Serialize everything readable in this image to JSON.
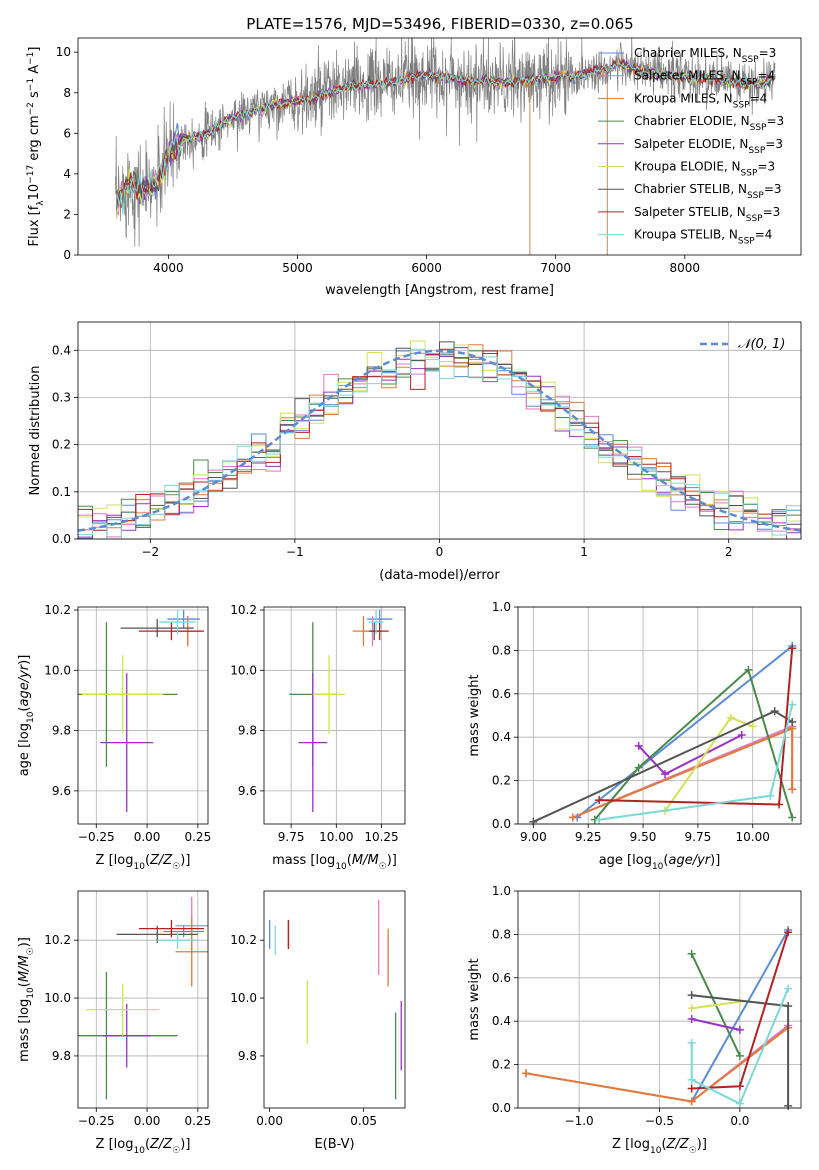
{
  "figure": {
    "title": "PLATE=1576, MJD=53496, FIBERID=0330, z=0.065"
  },
  "series_styles": {
    "colors": [
      "#7f7f7f",
      "#e377c2",
      "#ff7f0e",
      "#2ca02c",
      "#9467bd",
      "#bcbd22",
      "#000000",
      "#d62728",
      "#17becf"
    ],
    "names": [
      "Chabrier MILES, N$_{SSP}$=3",
      "Salpeter MILES, N$_{SSP}$=4",
      "Kroupa MILES, N$_{SSP}$=4",
      "Chabrier ELODIE, N$_{SSP}$=3",
      "Salpeter ELODIE, N$_{SSP}$=3",
      "Kroupa ELODIE, N$_{SSP}$=3",
      "Chabrier STELIB, N$_{SSP}$=3",
      "Salpeter STELIB, N$_{SSP}$=3",
      "Kroupa STELIB, N$_{SSP}$=4"
    ]
  },
  "chart_data": [
    {
      "id": "spectrum",
      "type": "line",
      "xlabel": "wavelength [Angstrom, rest frame]",
      "ylabel": "Flux [f_λ 10^-17 erg cm^-2 s^-1 A^-1]",
      "xlim": [
        3300,
        8900
      ],
      "ylim": [
        0,
        10.7
      ],
      "xticks": [
        4000,
        5000,
        6000,
        7000,
        8000
      ],
      "yticks": [
        0,
        2,
        4,
        6,
        8,
        10
      ],
      "grid": false,
      "legend_position": "right",
      "legend": [
        {
          "label": "Chabrier MILES, N",
          "sub": "SSP",
          "rest": "=3",
          "color": "#5b8bd6"
        },
        {
          "label": "Salpeter MILES, N",
          "sub": "SSP",
          "rest": "=4",
          "color": "#e377c2"
        },
        {
          "label": "Kroupa MILES, N",
          "sub": "SSP",
          "rest": "=4",
          "color": "#e07b39"
        },
        {
          "label": "Chabrier ELODIE, N",
          "sub": "SSP",
          "rest": "=3",
          "color": "#4a8a4a"
        },
        {
          "label": "Salpeter ELODIE, N",
          "sub": "SSP",
          "rest": "=3",
          "color": "#9b30c8"
        },
        {
          "label": "Kroupa ELODIE, N",
          "sub": "SSP",
          "rest": "=3",
          "color": "#d4e157"
        },
        {
          "label": "Chabrier STELIB, N",
          "sub": "SSP",
          "rest": "=3",
          "color": "#555555"
        },
        {
          "label": "Salpeter STELIB, N",
          "sub": "SSP",
          "rest": "=3",
          "color": "#b22222"
        },
        {
          "label": "Kroupa STELIB, N",
          "sub": "SSP",
          "rest": "=4",
          "color": "#7dd8d8"
        }
      ],
      "continuum": {
        "x": [
          3600,
          3700,
          3800,
          3900,
          4000,
          4100,
          4300,
          4500,
          4800,
          5100,
          5400,
          5700,
          6000,
          6300,
          6600,
          6900,
          7200,
          7500,
          7700,
          8000,
          8300,
          8600,
          8700
        ],
        "y": [
          2.6,
          3.6,
          3.2,
          3.4,
          4.9,
          5.7,
          6.0,
          6.8,
          7.4,
          7.7,
          8.3,
          8.5,
          8.9,
          8.6,
          8.5,
          8.7,
          8.9,
          9.4,
          9.0,
          8.8,
          8.6,
          8.4,
          8.8
        ]
      },
      "noise_amplitude": 1.2,
      "sky_spikes_x": [
        6800,
        7400
      ]
    },
    {
      "id": "residuals",
      "type": "histogram",
      "xlabel": "(data-model)/error",
      "ylabel": "Normed distribution",
      "xlim": [
        -2.5,
        2.5
      ],
      "ylim": [
        0,
        0.46
      ],
      "xticks": [
        -2,
        -1,
        0,
        1,
        2
      ],
      "yticks": [
        0.0,
        0.1,
        0.2,
        0.3,
        0.4
      ],
      "grid": true,
      "legend_position": "top-right",
      "gaussian_label": "𝒩(0, 1)",
      "gaussian_color": "#5b8bd6",
      "bin_width": 0.1
    },
    {
      "id": "age_vs_Z",
      "type": "errorbar",
      "xlabel": "Z [log10(Z/Z☉)]",
      "ylabel": "age [log10(age/yr)]",
      "xlim": [
        -0.34,
        0.3
      ],
      "ylim": [
        9.49,
        10.21
      ],
      "xticks": [
        -0.25,
        0.0,
        0.25
      ],
      "xtick_labels": [
        "−0.25",
        "0.00",
        "0.25"
      ],
      "yticks": [
        9.6,
        9.8,
        10.0,
        10.2
      ],
      "grid": true,
      "points": [
        {
          "color": "#5b8bd6",
          "x": 0.18,
          "xerr": 0.08,
          "y": 10.17,
          "yerr": 0.03
        },
        {
          "color": "#e377c2",
          "x": 0.2,
          "xerr": 0.06,
          "y": 10.13,
          "yerr": 0.05
        },
        {
          "color": "#e07b39",
          "x": 0.2,
          "xerr": 0.07,
          "y": 10.13,
          "yerr": 0.05
        },
        {
          "color": "#4a8a4a",
          "x": -0.2,
          "xerr": 0.35,
          "y": 9.92,
          "yerr": 0.24
        },
        {
          "color": "#9b30c8",
          "x": -0.1,
          "xerr": 0.13,
          "y": 9.76,
          "yerr": 0.23
        },
        {
          "color": "#d4e157",
          "x": -0.12,
          "xerr": 0.2,
          "y": 9.92,
          "yerr": 0.13
        },
        {
          "color": "#555555",
          "x": 0.05,
          "xerr": 0.18,
          "y": 10.14,
          "yerr": 0.03
        },
        {
          "color": "#b22222",
          "x": 0.12,
          "xerr": 0.16,
          "y": 10.13,
          "yerr": 0.03
        },
        {
          "color": "#7dd8d8",
          "x": 0.15,
          "xerr": 0.09,
          "y": 10.16,
          "yerr": 0.04
        }
      ]
    },
    {
      "id": "age_vs_mass",
      "type": "errorbar",
      "xlabel": "mass [log10(M/M☉)]",
      "ylabel": "",
      "xlim": [
        9.6,
        10.38
      ],
      "ylim": [
        9.49,
        10.21
      ],
      "xticks": [
        9.75,
        10.0,
        10.25
      ],
      "xtick_labels": [
        "9.75",
        "10.00",
        "10.25"
      ],
      "yticks": [
        9.6,
        9.8,
        10.0,
        10.2
      ],
      "grid": true,
      "points": [
        {
          "color": "#5b8bd6",
          "x": 10.24,
          "xerr": 0.07,
          "y": 10.17,
          "yerr": 0.03
        },
        {
          "color": "#e377c2",
          "x": 10.2,
          "xerr": 0.05,
          "y": 10.13,
          "yerr": 0.05
        },
        {
          "color": "#e07b39",
          "x": 10.15,
          "xerr": 0.06,
          "y": 10.13,
          "yerr": 0.05
        },
        {
          "color": "#4a8a4a",
          "x": 9.87,
          "xerr": 0.13,
          "y": 9.92,
          "yerr": 0.24
        },
        {
          "color": "#9b30c8",
          "x": 9.87,
          "xerr": 0.08,
          "y": 9.76,
          "yerr": 0.23
        },
        {
          "color": "#d4e157",
          "x": 9.96,
          "xerr": 0.09,
          "y": 9.92,
          "yerr": 0.13
        },
        {
          "color": "#555555",
          "x": 10.21,
          "xerr": 0.03,
          "y": 10.13,
          "yerr": 0.03
        },
        {
          "color": "#b22222",
          "x": 10.24,
          "xerr": 0.05,
          "y": 10.13,
          "yerr": 0.03
        },
        {
          "color": "#7dd8d8",
          "x": 10.22,
          "xerr": 0.04,
          "y": 10.16,
          "yerr": 0.04
        }
      ]
    },
    {
      "id": "weight_vs_age",
      "type": "line",
      "xlabel": "age [log10(age/yr)]",
      "ylabel": "mass weight",
      "xlim": [
        8.93,
        10.22
      ],
      "ylim": [
        0,
        1
      ],
      "xticks": [
        9.0,
        9.25,
        9.5,
        9.75,
        10.0
      ],
      "xtick_labels": [
        "9.00",
        "9.25",
        "9.50",
        "9.75",
        "10.00"
      ],
      "yticks": [
        0.0,
        0.2,
        0.4,
        0.6,
        0.8,
        1.0
      ],
      "grid": true,
      "series": [
        {
          "color": "#5b8bd6",
          "x": [
            9.2,
            10.18
          ],
          "y": [
            0.03,
            0.82
          ]
        },
        {
          "color": "#e377c2",
          "x": [
            9.18,
            10.18,
            10.18
          ],
          "y": [
            0.03,
            0.45,
            0.16
          ]
        },
        {
          "color": "#e07b39",
          "x": [
            9.18,
            10.18,
            10.18
          ],
          "y": [
            0.03,
            0.44,
            0.16
          ]
        },
        {
          "color": "#4a8a4a",
          "x": [
            9.28,
            9.48,
            9.98,
            10.18
          ],
          "y": [
            0.02,
            0.26,
            0.71,
            0.03
          ]
        },
        {
          "color": "#9b30c8",
          "x": [
            9.48,
            9.6,
            9.95
          ],
          "y": [
            0.36,
            0.23,
            0.41
          ]
        },
        {
          "color": "#d4e157",
          "x": [
            9.6,
            9.9,
            10.0
          ],
          "y": [
            0.06,
            0.49,
            0.45
          ]
        },
        {
          "color": "#555555",
          "x": [
            9.0,
            10.1,
            10.18
          ],
          "y": [
            0.01,
            0.52,
            0.47
          ]
        },
        {
          "color": "#b22222",
          "x": [
            9.3,
            10.12,
            10.18
          ],
          "y": [
            0.11,
            0.09,
            0.81
          ]
        },
        {
          "color": "#7dd8d8",
          "x": [
            9.3,
            10.08,
            10.18
          ],
          "y": [
            0.02,
            0.13,
            0.55
          ]
        }
      ]
    },
    {
      "id": "mass_vs_Z",
      "type": "errorbar",
      "xlabel": "Z [log10(Z/Z☉)]",
      "ylabel": "mass [log10(M/M☉)]",
      "xlim": [
        -0.34,
        0.3
      ],
      "ylim": [
        9.62,
        10.37
      ],
      "xticks": [
        -0.25,
        0.0,
        0.25
      ],
      "xtick_labels": [
        "−0.25",
        "0.00",
        "0.25"
      ],
      "yticks": [
        9.8,
        10.0,
        10.2
      ],
      "grid": true,
      "points": [
        {
          "color": "#5b8bd6",
          "x": 0.18,
          "xerr": 0.1,
          "y": 10.23,
          "yerr": 0.02
        },
        {
          "color": "#e377c2",
          "x": 0.22,
          "xerr": 0.08,
          "y": 10.25,
          "yerr": 0.1
        },
        {
          "color": "#e07b39",
          "x": 0.22,
          "xerr": 0.08,
          "y": 10.16,
          "yerr": 0.12
        },
        {
          "color": "#4a8a4a",
          "x": -0.2,
          "xerr": 0.35,
          "y": 9.87,
          "yerr": 0.22
        },
        {
          "color": "#9b30c8",
          "x": -0.1,
          "xerr": 0.12,
          "y": 9.87,
          "yerr": 0.11
        },
        {
          "color": "#d4e157",
          "x": -0.12,
          "xerr": 0.18,
          "y": 9.96,
          "yerr": 0.09
        },
        {
          "color": "#555555",
          "x": 0.05,
          "xerr": 0.2,
          "y": 10.22,
          "yerr": 0.03
        },
        {
          "color": "#b22222",
          "x": 0.12,
          "xerr": 0.16,
          "y": 10.24,
          "yerr": 0.03
        },
        {
          "color": "#7dd8d8",
          "x": 0.15,
          "xerr": 0.1,
          "y": 10.2,
          "yerr": 0.03
        }
      ]
    },
    {
      "id": "mass_vs_EBV",
      "type": "errorbar",
      "xlabel": "E(B-V)",
      "ylabel": "",
      "xlim": [
        -0.003,
        0.072
      ],
      "ylim": [
        9.62,
        10.37
      ],
      "xticks": [
        0.0,
        0.05
      ],
      "xtick_labels": [
        "0.00",
        "0.05"
      ],
      "yticks": [
        9.8,
        10.0,
        10.2
      ],
      "grid": false,
      "points": [
        {
          "color": "#5b8bd6",
          "x": 0.0,
          "xerr": 0,
          "y": 10.22,
          "yerr": 0.05
        },
        {
          "color": "#e377c2",
          "x": 0.058,
          "xerr": 0,
          "y": 10.21,
          "yerr": 0.13
        },
        {
          "color": "#e07b39",
          "x": 0.063,
          "xerr": 0,
          "y": 10.14,
          "yerr": 0.1
        },
        {
          "color": "#4a8a4a",
          "x": 0.067,
          "xerr": 0,
          "y": 9.8,
          "yerr": 0.15
        },
        {
          "color": "#9b30c8",
          "x": 0.07,
          "xerr": 0,
          "y": 9.87,
          "yerr": 0.12
        },
        {
          "color": "#d4e157",
          "x": 0.02,
          "xerr": 0,
          "y": 9.95,
          "yerr": 0.11
        },
        {
          "color": "#555555",
          "x": 0.01,
          "xerr": 0,
          "y": 10.22,
          "yerr": 0.05
        },
        {
          "color": "#b22222",
          "x": 0.01,
          "xerr": 0,
          "y": 10.22,
          "yerr": 0.05
        },
        {
          "color": "#7dd8d8",
          "x": 0.003,
          "xerr": 0,
          "y": 10.2,
          "yerr": 0.05
        }
      ]
    },
    {
      "id": "weight_vs_Z",
      "type": "line",
      "xlabel": "Z [log10(Z/Z☉)]",
      "ylabel": "mass weight",
      "xlim": [
        -1.38,
        0.38
      ],
      "ylim": [
        0,
        1
      ],
      "xticks": [
        -1.0,
        -0.5,
        0.0
      ],
      "xtick_labels": [
        "−1.0",
        "−0.5",
        "0.0"
      ],
      "yticks": [
        0.0,
        0.2,
        0.4,
        0.6,
        0.8,
        1.0
      ],
      "grid": true,
      "series": [
        {
          "color": "#5b8bd6",
          "x": [
            -0.3,
            0.3
          ],
          "y": [
            0.03,
            0.82
          ]
        },
        {
          "color": "#e377c2",
          "x": [
            -1.33,
            -0.3,
            0.3
          ],
          "y": [
            0.16,
            0.03,
            0.38
          ]
        },
        {
          "color": "#e07b39",
          "x": [
            -1.33,
            -0.3,
            0.3
          ],
          "y": [
            0.16,
            0.03,
            0.37
          ]
        },
        {
          "color": "#4a8a4a",
          "x": [
            -0.3,
            0.0
          ],
          "y": [
            0.71,
            0.24
          ]
        },
        {
          "color": "#9b30c8",
          "x": [
            -0.3,
            0.0
          ],
          "y": [
            0.41,
            0.36
          ]
        },
        {
          "color": "#d4e157",
          "x": [
            -0.3,
            0.0
          ],
          "y": [
            0.46,
            0.49
          ]
        },
        {
          "color": "#555555",
          "x": [
            -0.3,
            0.3,
            0.3
          ],
          "y": [
            0.52,
            0.47,
            0.01
          ]
        },
        {
          "color": "#b22222",
          "x": [
            -0.3,
            0.0,
            0.3
          ],
          "y": [
            0.09,
            0.1,
            0.81
          ]
        },
        {
          "color": "#7dd8d8",
          "x": [
            -0.3,
            -0.3,
            0.0,
            0.3
          ],
          "y": [
            0.3,
            0.13,
            0.02,
            0.55
          ]
        }
      ]
    }
  ]
}
